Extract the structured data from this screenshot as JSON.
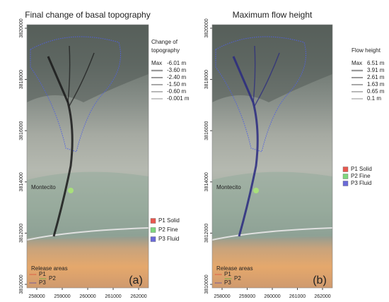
{
  "panels": [
    {
      "title": "Final change of basal topography",
      "legend_title": [
        "Change of",
        "topography"
      ],
      "max_label": "Max",
      "legend_items": [
        "-6.01 m",
        "-3.60 m",
        "-2.40 m",
        "-1.50 m",
        "-0.60 m",
        "-0.001 m"
      ],
      "panel_label": "(a)"
    },
    {
      "title": "Maximum flow height",
      "legend_title": [
        "Flow height"
      ],
      "max_label": "Max",
      "legend_items": [
        "6.51 m",
        "3.91 m",
        "2.61 m",
        "1.63 m",
        "0.65 m",
        "0.1 m"
      ],
      "panel_label": "(b)"
    }
  ],
  "sources": [
    {
      "label": "P1 Solid",
      "color": "#e8584f"
    },
    {
      "label": "P2 Fine",
      "color": "#7ed67e"
    },
    {
      "label": "P3 Fluid",
      "color": "#6a6ad8"
    }
  ],
  "release_title": "Release areas",
  "release_items": [
    {
      "label": "P1",
      "color": "#e02020"
    },
    {
      "label": "P2",
      "color": "#20c020"
    },
    {
      "label": "P3",
      "color": "#2020c0"
    }
  ],
  "xticks": [
    "258000",
    "259000",
    "260000",
    "261000",
    "262000"
  ],
  "yticks": [
    "3820000",
    "3818000",
    "3816000",
    "3814000",
    "3812000",
    "3810000"
  ],
  "place_label": "Montecito"
}
